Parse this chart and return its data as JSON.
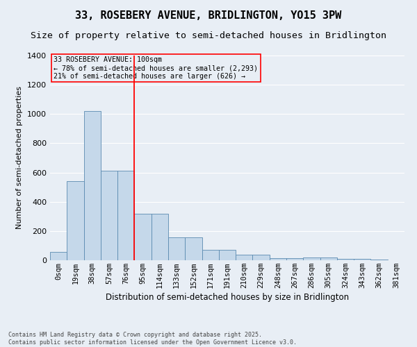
{
  "title": "33, ROSEBERY AVENUE, BRIDLINGTON, YO15 3PW",
  "subtitle": "Size of property relative to semi-detached houses in Bridlington",
  "xlabel": "Distribution of semi-detached houses by size in Bridlington",
  "ylabel": "Number of semi-detached properties",
  "bin_labels": [
    "0sqm",
    "19sqm",
    "38sqm",
    "57sqm",
    "76sqm",
    "95sqm",
    "114sqm",
    "133sqm",
    "152sqm",
    "171sqm",
    "191sqm",
    "210sqm",
    "229sqm",
    "248sqm",
    "267sqm",
    "286sqm",
    "305sqm",
    "324sqm",
    "343sqm",
    "362sqm",
    "381sqm"
  ],
  "bar_values": [
    55,
    540,
    1020,
    610,
    610,
    320,
    320,
    155,
    155,
    70,
    70,
    38,
    38,
    15,
    15,
    18,
    18,
    8,
    8,
    3,
    0
  ],
  "bar_color": "#c5d8ea",
  "bar_edge_color": "#5a8ab0",
  "bg_color": "#e8eef5",
  "grid_color": "#ffffff",
  "vline_color": "red",
  "annotation_text": "33 ROSEBERY AVENUE: 100sqm\n← 78% of semi-detached houses are smaller (2,293)\n21% of semi-detached houses are larger (626) →",
  "annotation_box_color": "red",
  "ylim": [
    0,
    1400
  ],
  "yticks": [
    0,
    200,
    400,
    600,
    800,
    1000,
    1200,
    1400
  ],
  "footer": "Contains HM Land Registry data © Crown copyright and database right 2025.\nContains public sector information licensed under the Open Government Licence v3.0.",
  "title_fontsize": 11,
  "subtitle_fontsize": 9.5,
  "axis_label_fontsize": 8,
  "tick_fontsize": 7.5,
  "footer_fontsize": 6
}
